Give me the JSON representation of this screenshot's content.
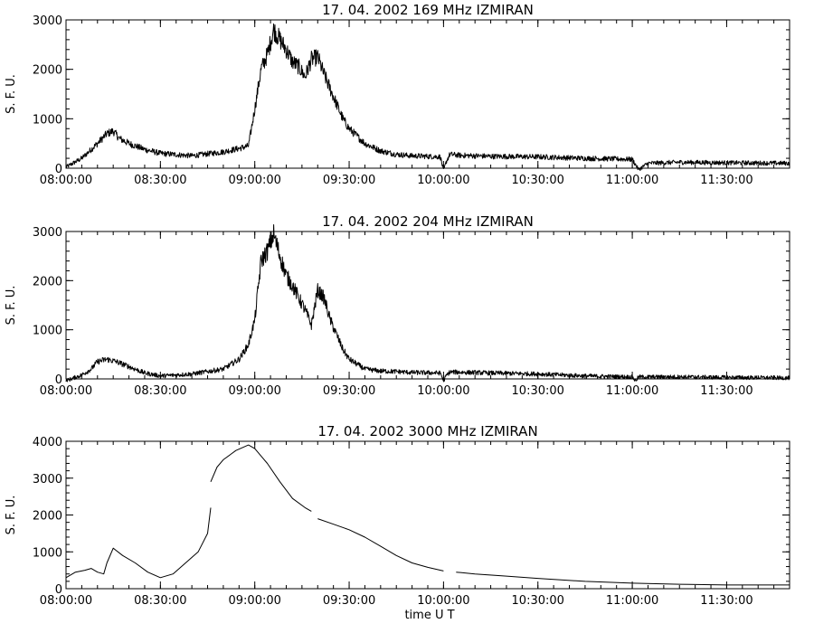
{
  "chart_data": [
    {
      "type": "line",
      "title": "17.  04.  2002    169  MHz    IZMIRAN",
      "ylabel": "S. F. U.",
      "xlabel": "",
      "x_range": [
        "08:00:00",
        "11:50:00"
      ],
      "ylim": [
        0,
        3000
      ],
      "x_tick_labels": [
        "08:00:00",
        "08:30:00",
        "09:00:00",
        "09:30:00",
        "10:00:00",
        "10:30:00",
        "11:00:00",
        "11:30:00"
      ],
      "y_tick_labels": [
        "0",
        "1000",
        "2000",
        "3000"
      ],
      "y_ticks": [
        0,
        1000,
        2000,
        3000
      ],
      "grid": false,
      "line_color": "#000000",
      "series": [
        {
          "x": [
            "08:00:00",
            "08:05:00",
            "08:10:00",
            "08:13:00",
            "08:15:00",
            "08:17:00",
            "08:20:00",
            "08:25:00",
            "08:30:00",
            "08:40:00",
            "08:50:00",
            "08:55:00",
            "08:58:00",
            "09:00:00",
            "09:02:00",
            "09:04:00",
            "09:06:00",
            "09:08:00",
            "09:10:00",
            "09:12:00",
            "09:14:00",
            "09:16:00",
            "09:18:00",
            "09:20:00",
            "09:22:00",
            "09:24:00",
            "09:26:00",
            "09:28:00",
            "09:30:00",
            "09:35:00",
            "09:40:00",
            "09:45:00",
            "09:50:00",
            "09:55:00",
            "09:59:00",
            "10:00:00",
            "10:01:00",
            "10:02:00",
            "10:05:00",
            "10:15:00",
            "10:30:00",
            "10:45:00",
            "11:00:00",
            "11:02:00",
            "11:05:00",
            "11:15:00",
            "11:30:00",
            "11:50:00"
          ],
          "y": [
            20,
            200,
            500,
            700,
            750,
            600,
            500,
            380,
            300,
            250,
            330,
            400,
            450,
            1200,
            2000,
            2300,
            2800,
            2600,
            2400,
            2150,
            2050,
            1850,
            2200,
            2250,
            1900,
            1600,
            1300,
            1000,
            800,
            500,
            350,
            280,
            250,
            240,
            230,
            -50,
            150,
            280,
            260,
            240,
            230,
            200,
            180,
            -30,
            100,
            120,
            110,
            100
          ]
        }
      ]
    },
    {
      "type": "line",
      "title": "17.  04.  2002    204  MHz    IZMIRAN",
      "ylabel": "S. F. U.",
      "xlabel": "",
      "x_range": [
        "08:00:00",
        "11:50:00"
      ],
      "ylim": [
        0,
        3000
      ],
      "x_tick_labels": [
        "08:00:00",
        "08:30:00",
        "09:00:00",
        "09:30:00",
        "10:00:00",
        "10:30:00",
        "11:00:00",
        "11:30:00"
      ],
      "y_tick_labels": [
        "0",
        "1000",
        "2000",
        "3000"
      ],
      "y_ticks": [
        0,
        1000,
        2000,
        3000
      ],
      "grid": false,
      "line_color": "#000000",
      "series": [
        {
          "x": [
            "08:00:00",
            "08:05:00",
            "08:08:00",
            "08:10:00",
            "08:13:00",
            "08:16:00",
            "08:20:00",
            "08:25:00",
            "08:30:00",
            "08:40:00",
            "08:50:00",
            "08:55:00",
            "08:58:00",
            "09:00:00",
            "09:02:00",
            "09:04:00",
            "09:06:00",
            "09:08:00",
            "09:10:00",
            "09:12:00",
            "09:14:00",
            "09:16:00",
            "09:18:00",
            "09:20:00",
            "09:22:00",
            "09:24:00",
            "09:26:00",
            "09:28:00",
            "09:30:00",
            "09:35:00",
            "09:40:00",
            "09:45:00",
            "09:50:00",
            "09:59:00",
            "10:00:00",
            "10:01:00",
            "10:02:00",
            "10:15:00",
            "10:30:00",
            "10:45:00",
            "11:00:00",
            "11:01:00",
            "11:02:00",
            "11:15:00",
            "11:30:00",
            "11:50:00"
          ],
          "y": [
            -40,
            80,
            200,
            350,
            400,
            350,
            250,
            120,
            60,
            100,
            200,
            400,
            700,
            1200,
            2400,
            2600,
            2950,
            2500,
            2100,
            1900,
            1650,
            1400,
            1100,
            1800,
            1650,
            1200,
            900,
            600,
            400,
            200,
            160,
            150,
            130,
            120,
            -40,
            80,
            140,
            120,
            100,
            60,
            40,
            -40,
            40,
            40,
            30,
            20
          ]
        }
      ]
    },
    {
      "type": "line",
      "title": "17.  04.  2002    3000  MHz    IZMIRAN",
      "ylabel": "S. F. U.",
      "xlabel": "time   U T",
      "x_range": [
        "08:00:00",
        "11:50:00"
      ],
      "ylim": [
        0,
        4000
      ],
      "x_tick_labels": [
        "08:00:00",
        "08:30:00",
        "09:00:00",
        "09:30:00",
        "10:00:00",
        "10:30:00",
        "11:00:00",
        "11:30:00"
      ],
      "y_tick_labels": [
        "0",
        "1000",
        "2000",
        "3000",
        "4000"
      ],
      "y_ticks": [
        0,
        1000,
        2000,
        3000,
        4000
      ],
      "grid": false,
      "line_color": "#000000",
      "series": [
        {
          "x": [
            "08:00:00",
            "08:03:00",
            "08:06:00",
            "08:08:00",
            "08:10:00",
            "08:12:00",
            "08:13:00",
            "08:15:00",
            "08:18:00",
            "08:22:00",
            "08:26:00",
            "08:30:00",
            "08:34:00",
            "08:38:00",
            "08:42:00",
            "08:45:00",
            "08:46:00"
          ],
          "y": [
            300,
            450,
            500,
            550,
            450,
            400,
            700,
            1100,
            900,
            700,
            450,
            300,
            400,
            700,
            1000,
            1500,
            2200
          ]
        },
        {
          "x": [
            "08:46:00",
            "08:48:00",
            "08:50:00",
            "08:54:00",
            "08:58:00",
            "09:00:00",
            "09:04:00",
            "09:08:00",
            "09:12:00",
            "09:16:00",
            "09:18:00"
          ],
          "y": [
            2900,
            3300,
            3500,
            3750,
            3900,
            3800,
            3400,
            2900,
            2450,
            2200,
            2100
          ]
        },
        {
          "x": [
            "09:20:00",
            "09:25:00",
            "09:30:00",
            "09:35:00",
            "09:40:00",
            "09:45:00",
            "09:50:00",
            "09:55:00",
            "10:00:00"
          ],
          "y": [
            1900,
            1750,
            1600,
            1400,
            1150,
            900,
            700,
            580,
            480
          ]
        },
        {
          "x": [
            "10:04:00",
            "10:10:00",
            "10:20:00",
            "10:30:00",
            "10:45:00",
            "11:00:00",
            "11:15:00",
            "11:30:00",
            "11:50:00"
          ],
          "y": [
            450,
            400,
            340,
            280,
            200,
            150,
            120,
            100,
            100
          ]
        }
      ]
    }
  ]
}
